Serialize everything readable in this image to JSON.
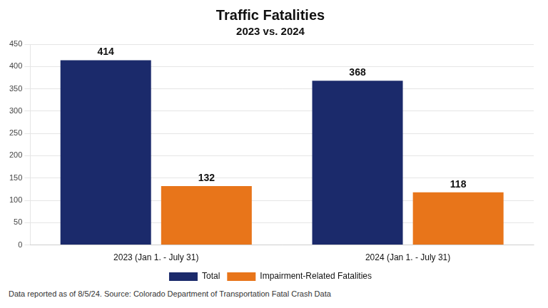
{
  "chart_data": {
    "type": "bar",
    "title": "Traffic Fatalities",
    "subtitle": "2023 vs. 2024",
    "annotations": [
      "Data reported as of 8/5/24. Source: Colorado Department of Transportation Fatal Crash Data"
    ],
    "categories": [
      "2023 (Jan 1. - July 31)",
      "2024 (Jan 1. - July 31)"
    ],
    "series": [
      {
        "name": "Total",
        "color": "#1b2a6b",
        "values": [
          414,
          368
        ]
      },
      {
        "name": "Impairment-Related Fatalities",
        "color": "#e8751a",
        "values": [
          132,
          118
        ]
      }
    ],
    "ylim": [
      0,
      450
    ],
    "yticks": [
      0,
      50,
      100,
      150,
      200,
      250,
      300,
      350,
      400,
      450
    ],
    "grid": true,
    "legend": "bottom",
    "data_labels": true
  }
}
